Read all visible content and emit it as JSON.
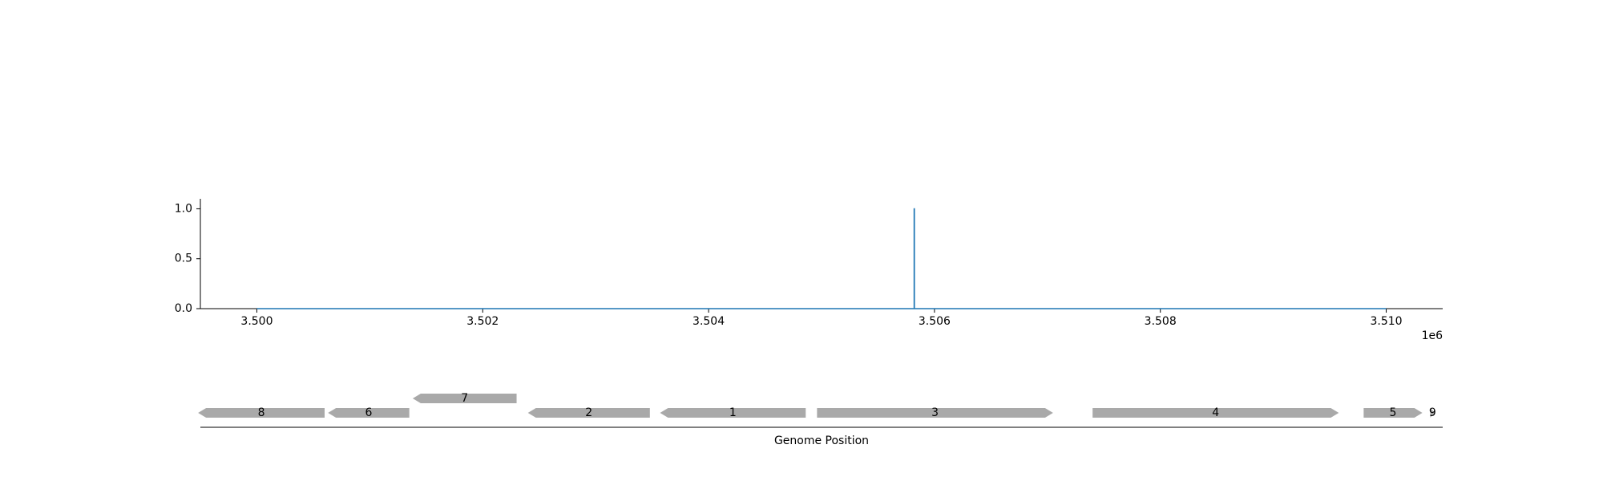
{
  "chart_data": [
    {
      "type": "line",
      "x": [
        3500000,
        3505820,
        3505820,
        3505822,
        3505822,
        3510000
      ],
      "y": [
        0.0,
        0.0,
        1.0,
        1.0,
        0.0,
        0.0
      ],
      "xlim": [
        3499500,
        3510500
      ],
      "ylim": [
        0.0,
        1.1
      ],
      "xticks": [
        3500000,
        3502000,
        3504000,
        3506000,
        3508000,
        3510000
      ],
      "xtick_labels": [
        "3.500",
        "3.502",
        "3.504",
        "3.506",
        "3.508",
        "3.510"
      ],
      "yticks": [
        0.0,
        0.5,
        1.0
      ],
      "ytick_labels": [
        "0.0",
        "0.5",
        "1.0"
      ],
      "x_offset_label": "1e6",
      "line_color": "#1f77b4",
      "grid": false
    },
    {
      "type": "gene_map",
      "xlabel": "Genome Position",
      "gene_color": "#a9a9a9",
      "genes": [
        {
          "label": "8",
          "start": 3499480,
          "end": 3500600,
          "strand": "-",
          "row": 0
        },
        {
          "label": "6",
          "start": 3500630,
          "end": 3501350,
          "strand": "-",
          "row": 0
        },
        {
          "label": "7",
          "start": 3501380,
          "end": 3502300,
          "strand": "-",
          "row": 1
        },
        {
          "label": "2",
          "start": 3502400,
          "end": 3503480,
          "strand": "-",
          "row": 0
        },
        {
          "label": "1",
          "start": 3503570,
          "end": 3504860,
          "strand": "-",
          "row": 0
        },
        {
          "label": "3",
          "start": 3504960,
          "end": 3507050,
          "strand": "+",
          "row": 0
        },
        {
          "label": "4",
          "start": 3507400,
          "end": 3509580,
          "strand": "+",
          "row": 0
        },
        {
          "label": "5",
          "start": 3509800,
          "end": 3510320,
          "strand": "+",
          "row": 0
        },
        {
          "label": "9",
          "start": 3510390,
          "end": 3510430,
          "strand": "+",
          "row": 0
        }
      ]
    }
  ]
}
